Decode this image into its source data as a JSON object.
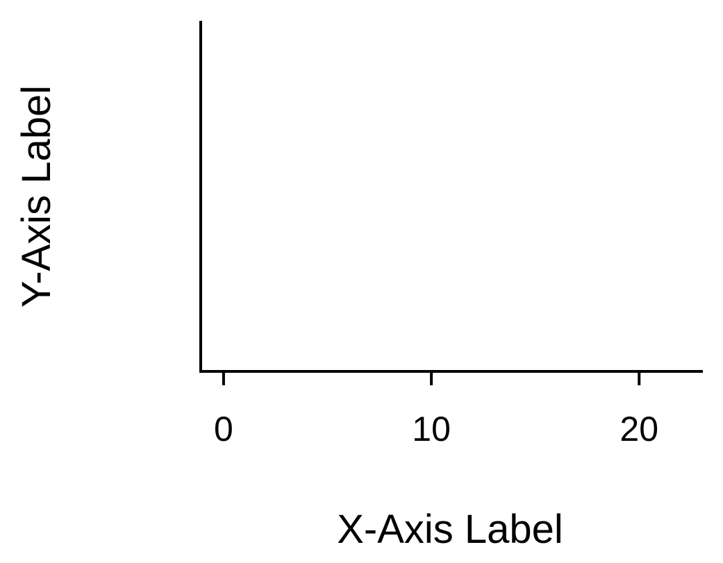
{
  "chart_data": {
    "type": "scatter",
    "title": "",
    "xlabel": "X-Axis Label",
    "ylabel": "Y-Axis Label",
    "xlim": [
      -1.1,
      23
    ],
    "x_ticks": [
      0,
      10,
      20
    ],
    "x_tick_labels": [
      "0",
      "10",
      "20"
    ],
    "y_ticks": [],
    "series": [],
    "grid": false,
    "legend": "none",
    "axis_color": "#000000",
    "background": "#ffffff"
  }
}
